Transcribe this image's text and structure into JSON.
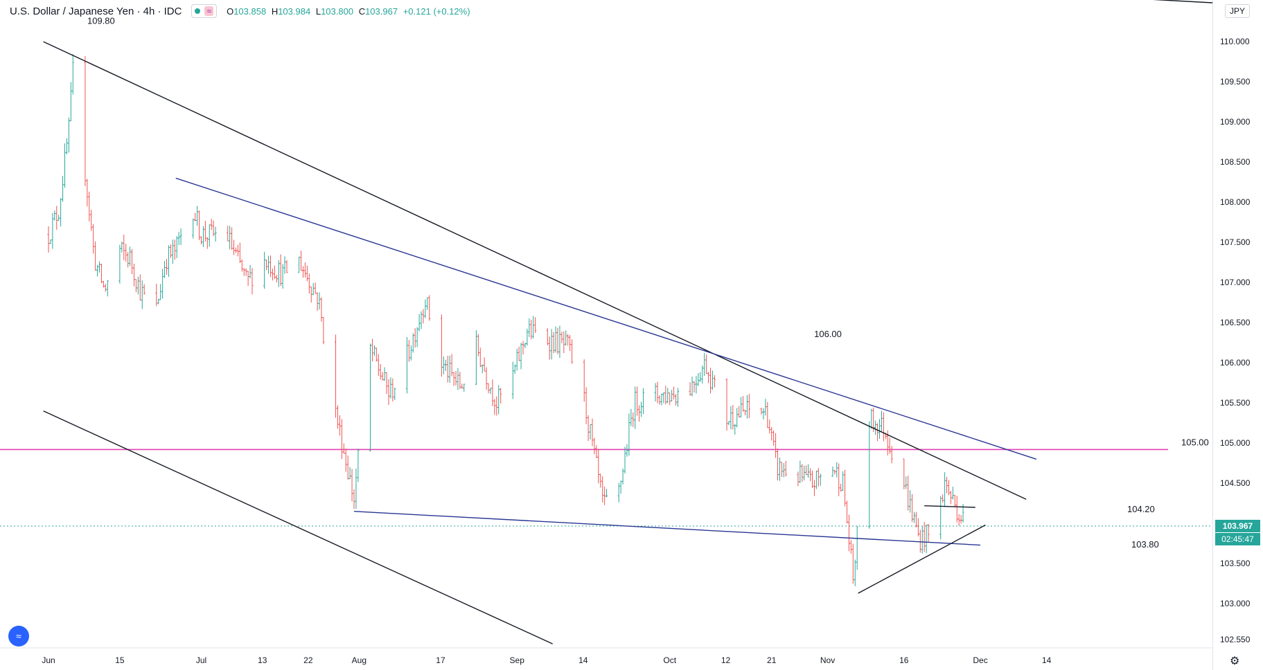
{
  "header": {
    "symbol": "U.S. Dollar / Japanese Yen · 4h · IDC",
    "indicator_icon": "circle-dot-icon",
    "wave_icon": "wave-icon",
    "ohlc": {
      "o": "103.858",
      "h": "103.984",
      "l": "103.800",
      "c": "103.967",
      "chg": "+0.121 (+0.12%)"
    }
  },
  "axis": {
    "currency": "JPY",
    "countdown": "02:45:47"
  },
  "chart_data": {
    "type": "candlestick",
    "title": "U.S. Dollar / Japanese Yen · 4h · IDC",
    "ylim": [
      102.45,
      110.45
    ],
    "y_ticks": [
      "102.550",
      "103.000",
      "103.500",
      "104.000",
      "104.500",
      "105.000",
      "105.500",
      "106.000",
      "106.500",
      "107.000",
      "107.500",
      "108.000",
      "108.500",
      "109.000",
      "109.500",
      "110.000"
    ],
    "x_ticks": [
      "Jun",
      "15",
      "Jul",
      "13",
      "22",
      "Aug",
      "17",
      "Sep",
      "14",
      "Oct",
      "12",
      "21",
      "Nov",
      "16",
      "Dec",
      "14"
    ],
    "current_price": "103.967",
    "horizontal_level": {
      "value": 104.92,
      "color": "#e040b0"
    },
    "annotations": [
      "109.80",
      "106.00",
      "105.00",
      "104.20",
      "103.80"
    ],
    "path_points": [
      [
        "Jun 1",
        107.6
      ],
      [
        "Jun 3",
        107.9
      ],
      [
        "Jun 5",
        108.9
      ],
      [
        "Jun 6",
        109.8
      ],
      [
        "Jun 8",
        108.5
      ],
      [
        "Jun 10",
        107.3
      ],
      [
        "Jun 12",
        106.9
      ],
      [
        "Jun 15",
        107.4
      ],
      [
        "Jun 17",
        107.3
      ],
      [
        "Jun 19",
        106.9
      ],
      [
        "Jun 22",
        106.6
      ],
      [
        "Jun 24",
        107.3
      ],
      [
        "Jun 26",
        107.4
      ],
      [
        "Jun 29",
        108.0
      ],
      [
        "Jul 1",
        107.6
      ],
      [
        "Jul 6",
        107.6
      ],
      [
        "Jul 10",
        107.0
      ],
      [
        "Jul 13",
        107.3
      ],
      [
        "Jul 17",
        107.1
      ],
      [
        "Jul 20",
        107.3
      ],
      [
        "Jul 24",
        106.8
      ],
      [
        "Jul 27",
        105.5
      ],
      [
        "Jul 31",
        104.3
      ],
      [
        "Aug 3",
        106.2
      ],
      [
        "Aug 7",
        105.6
      ],
      [
        "Aug 10",
        106.0
      ],
      [
        "Aug 14",
        106.8
      ],
      [
        "Aug 17",
        106.0
      ],
      [
        "Aug 21",
        105.7
      ],
      [
        "Aug 24",
        106.2
      ],
      [
        "Aug 28",
        105.5
      ],
      [
        "Aug 31",
        105.8
      ],
      [
        "Sep 3",
        106.4
      ],
      [
        "Sep 7",
        106.3
      ],
      [
        "Sep 11",
        106.2
      ],
      [
        "Sep 14",
        105.6
      ],
      [
        "Sep 18",
        104.2
      ],
      [
        "Sep 21",
        104.4
      ],
      [
        "Sep 24",
        105.5
      ],
      [
        "Sep 28",
        105.6
      ],
      [
        "Oct 1",
        105.6
      ],
      [
        "Oct 5",
        105.7
      ],
      [
        "Oct 8",
        106.0
      ],
      [
        "Oct 12",
        105.3
      ],
      [
        "Oct 16",
        105.4
      ],
      [
        "Oct 20",
        105.4
      ],
      [
        "Oct 22",
        104.7
      ],
      [
        "Oct 26",
        104.6
      ],
      [
        "Oct 29",
        104.5
      ],
      [
        "Nov 2",
        104.7
      ],
      [
        "Nov 4",
        104.5
      ],
      [
        "Nov 6",
        103.3
      ],
      [
        "Nov 9",
        105.3
      ],
      [
        "Nov 12",
        105.2
      ],
      [
        "Nov 16",
        104.5
      ],
      [
        "Nov 19",
        103.8
      ],
      [
        "Nov 22",
        103.9
      ],
      [
        "Nov 24",
        104.5
      ],
      [
        "Nov 27",
        104.1
      ],
      [
        "Nov 30",
        103.97
      ]
    ],
    "trendlines": [
      {
        "color": "#131722",
        "points": [
          [
            "May 31",
            110.0
          ],
          [
            "Dec 10",
            104.3
          ]
        ]
      },
      {
        "color": "#131722",
        "points": [
          [
            "May 31",
            105.4
          ],
          [
            "Sep 8",
            102.5
          ]
        ]
      },
      {
        "color": "#283593",
        "points": [
          [
            "Jun 26",
            108.3
          ],
          [
            "Dec 12",
            104.8
          ]
        ]
      },
      {
        "color": "#283593",
        "points": [
          [
            "Jul 31",
            104.15
          ],
          [
            "Dec 1",
            103.73
          ]
        ]
      },
      {
        "color": "#131722",
        "points": [
          [
            "Nov 7",
            103.13
          ],
          [
            "Dec 2",
            103.98
          ]
        ]
      },
      {
        "color": "#131722",
        "points": [
          [
            "Nov 20",
            104.22
          ],
          [
            "Nov 30",
            104.2
          ]
        ]
      }
    ]
  }
}
